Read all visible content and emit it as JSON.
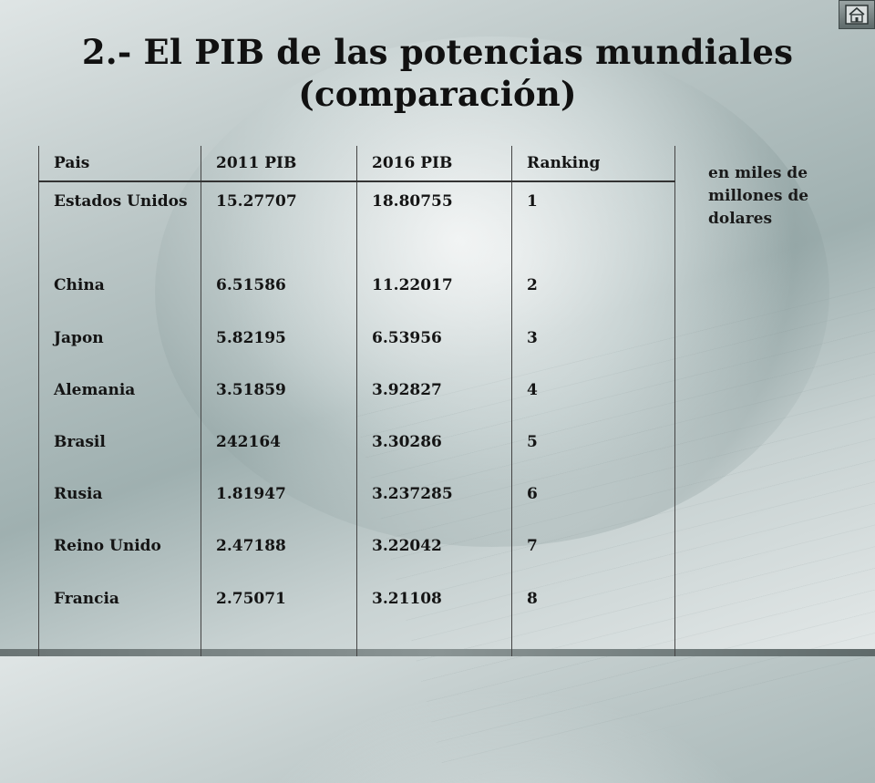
{
  "slide": {
    "title_line1": "2.- El PIB de las potencias mundiales",
    "title_line2": "(comparación)",
    "note": "en miles de millones de dolares",
    "home_icon": "house-icon"
  },
  "table": {
    "headers": [
      "Pais",
      "2011 PIB",
      "2016  PIB",
      "Ranking"
    ],
    "rows": [
      {
        "pais": "Estados Unidos",
        "pib_2011": "15.27707",
        "pib_2016": "18.80755",
        "ranking": "1"
      },
      {
        "pais": "China",
        "pib_2011": "6.51586",
        "pib_2016": "11.22017",
        "ranking": "2"
      },
      {
        "pais": "Japon",
        "pib_2011": "5.82195",
        "pib_2016": "6.53956",
        "ranking": "3"
      },
      {
        "pais": "Alemania",
        "pib_2011": "3.51859",
        "pib_2016": "3.92827",
        "ranking": "4"
      },
      {
        "pais": "Brasil",
        "pib_2011": "242164",
        "pib_2016": "3.30286",
        "ranking": "5"
      },
      {
        "pais": "Rusia",
        "pib_2011": "1.81947",
        "pib_2016": "3.237285",
        "ranking": "6"
      },
      {
        "pais": "Reino Unido",
        "pib_2011": "2.47188",
        "pib_2016": "3.22042",
        "ranking": "7"
      },
      {
        "pais": "Francia",
        "pib_2011": "2.75071",
        "pib_2016": "3.21108",
        "ranking": "8"
      }
    ]
  }
}
